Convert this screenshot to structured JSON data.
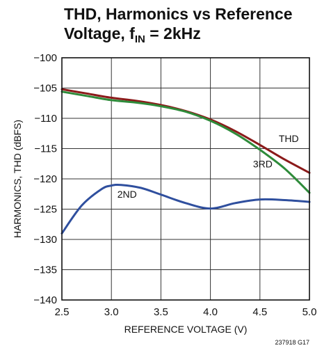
{
  "title": {
    "line1": "THD, Harmonics vs Reference",
    "line2_prefix": "Voltage, f",
    "line2_sub": "IN",
    "line2_suffix": " = 2kHz"
  },
  "figure_code": "237918 G17",
  "chart_data": {
    "type": "line",
    "xlabel": "REFERENCE VOLTAGE (V)",
    "ylabel": "HARMONICS, THD (dBFS)",
    "xlim": [
      2.5,
      5.0
    ],
    "ylim": [
      -140,
      -100
    ],
    "xticks": [
      "2.5",
      "3.0",
      "3.5",
      "4.0",
      "4.5",
      "5.0"
    ],
    "yticks": [
      "−100",
      "−105",
      "−110",
      "−115",
      "−120",
      "−125",
      "−130",
      "−135",
      "−140"
    ],
    "grid": true,
    "series": [
      {
        "name": "THD",
        "color": "#8b1a1a",
        "x": [
          2.5,
          2.75,
          3.0,
          3.25,
          3.5,
          3.75,
          4.0,
          4.25,
          4.5,
          4.75,
          5.0
        ],
        "y": [
          -105.2,
          -105.9,
          -106.6,
          -107.1,
          -107.8,
          -108.8,
          -110.2,
          -112.1,
          -114.4,
          -116.8,
          -119.0
        ]
      },
      {
        "name": "3RD",
        "color": "#2e8b3a",
        "x": [
          2.5,
          2.75,
          3.0,
          3.25,
          3.5,
          3.75,
          4.0,
          4.25,
          4.5,
          4.75,
          5.0
        ],
        "y": [
          -105.6,
          -106.3,
          -107.0,
          -107.4,
          -108.0,
          -108.9,
          -110.4,
          -112.5,
          -115.2,
          -118.3,
          -122.3
        ]
      },
      {
        "name": "2ND",
        "color": "#2f4f9e",
        "x": [
          2.5,
          2.7,
          2.9,
          3.0,
          3.1,
          3.3,
          3.5,
          3.75,
          4.0,
          4.25,
          4.5,
          4.75,
          5.0
        ],
        "y": [
          -129.0,
          -124.4,
          -121.7,
          -121.1,
          -121.0,
          -121.5,
          -122.6,
          -124.0,
          -124.9,
          -124.0,
          -123.4,
          -123.5,
          -123.8
        ]
      }
    ],
    "annotations": [
      {
        "text": "THD",
        "x": 4.69,
        "y": -113.9
      },
      {
        "text": "3RD",
        "x": 4.43,
        "y": -118.1
      },
      {
        "text": "2ND",
        "x": 3.06,
        "y": -123.1
      }
    ]
  }
}
